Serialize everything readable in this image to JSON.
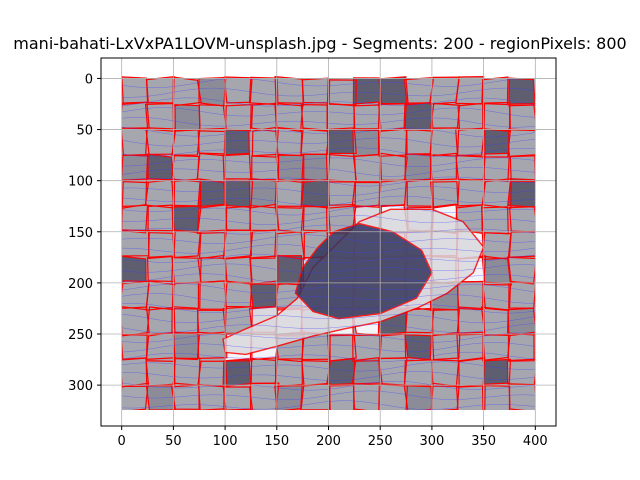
{
  "chart_data": {
    "type": "heatmap",
    "title": "mani-bahati-LxVxPA1LOVM-unsplash.jpg - Segments: 200 - regionPixels: 800",
    "xlabel": "",
    "ylabel": "",
    "xlim": [
      -20,
      420
    ],
    "ylim": [
      340,
      -20
    ],
    "x_ticks": [
      0,
      50,
      100,
      150,
      200,
      250,
      300,
      350,
      400
    ],
    "y_ticks": [
      0,
      50,
      100,
      150,
      200,
      250,
      300
    ],
    "grid": true,
    "image_extent": [
      0,
      400,
      0,
      325
    ],
    "colors": {
      "background_tile": "#a6a6ae",
      "dark_tile": "#5e5e70",
      "darker_tile": "#34345a",
      "light_region": "#d8d8de",
      "white_region": "#f4f4f8",
      "boundary": "#ff0000",
      "contour": "#3a3aff",
      "grid": "#b0b0b0"
    }
  }
}
